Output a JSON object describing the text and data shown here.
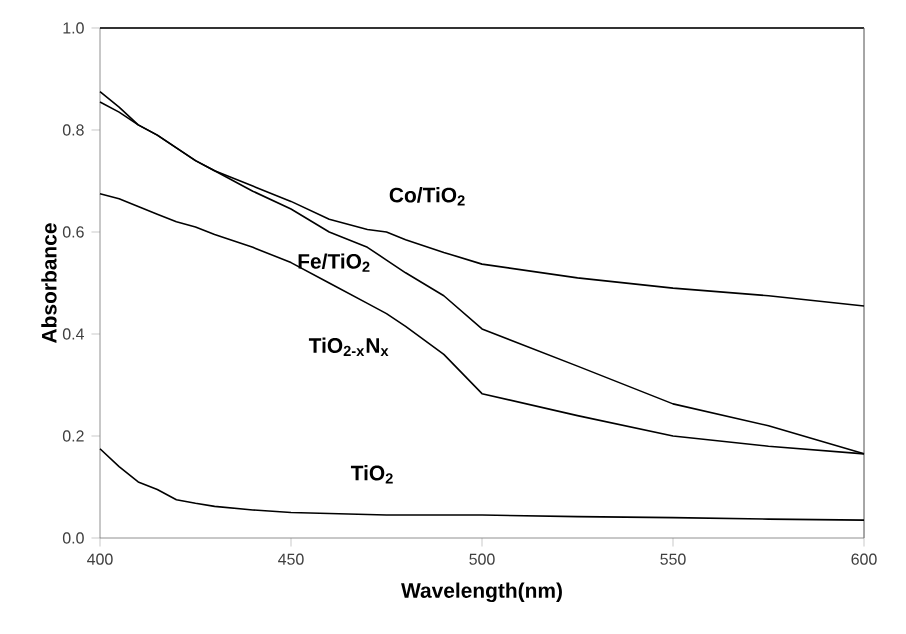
{
  "chart_data": {
    "type": "line",
    "xlabel": "Wavelength(nm)",
    "ylabel": "Absorbance",
    "x": [
      400,
      405,
      410,
      415,
      420,
      425,
      430,
      440,
      450,
      460,
      470,
      475,
      480,
      490,
      500,
      525,
      550,
      575,
      600
    ],
    "series": [
      {
        "name": "Co/TiO$_{2}$",
        "color": "#000000",
        "values": [
          0.875,
          0.845,
          0.81,
          0.79,
          0.765,
          0.74,
          0.72,
          0.69,
          0.66,
          0.625,
          0.605,
          0.6,
          0.585,
          0.56,
          0.537,
          0.51,
          0.49,
          0.475,
          0.455
        ]
      },
      {
        "name": "Fe/TiO$_{2}$",
        "color": "#000000",
        "values": [
          0.855,
          0.835,
          0.81,
          0.79,
          0.765,
          0.74,
          0.72,
          0.68,
          0.645,
          0.6,
          0.57,
          0.545,
          0.52,
          0.475,
          0.41,
          0.337,
          0.263,
          0.22,
          0.165
        ]
      },
      {
        "name": "TiO$_{2-x}$N$_{x}$",
        "color": "#000000",
        "values": [
          0.675,
          0.665,
          0.65,
          0.635,
          0.62,
          0.61,
          0.595,
          0.57,
          0.54,
          0.5,
          0.46,
          0.44,
          0.415,
          0.36,
          0.283,
          0.24,
          0.2,
          0.18,
          0.165
        ]
      },
      {
        "name": "TiO$_{2}$",
        "color": "#000000",
        "values": [
          0.175,
          0.14,
          0.11,
          0.095,
          0.075,
          0.068,
          0.062,
          0.055,
          0.05,
          0.048,
          0.046,
          0.045,
          0.045,
          0.045,
          0.045,
          0.042,
          0.04,
          0.037,
          0.035
        ]
      }
    ],
    "xlim": [
      400,
      600
    ],
    "ylim": [
      0,
      1
    ],
    "xticks": [
      400,
      450,
      500,
      550,
      600
    ],
    "yticks": [
      {
        "value": 0,
        "label": "0.0"
      },
      {
        "value": 0.2,
        "label": "0.2"
      },
      {
        "value": 0.4,
        "label": "0.4"
      },
      {
        "value": 0.6,
        "label": "0.6"
      },
      {
        "value": 0.8,
        "label": "0.8"
      },
      {
        "value": 1,
        "label": "1.0"
      }
    ],
    "grid": false,
    "marker": "none",
    "line_style": "solid"
  }
}
